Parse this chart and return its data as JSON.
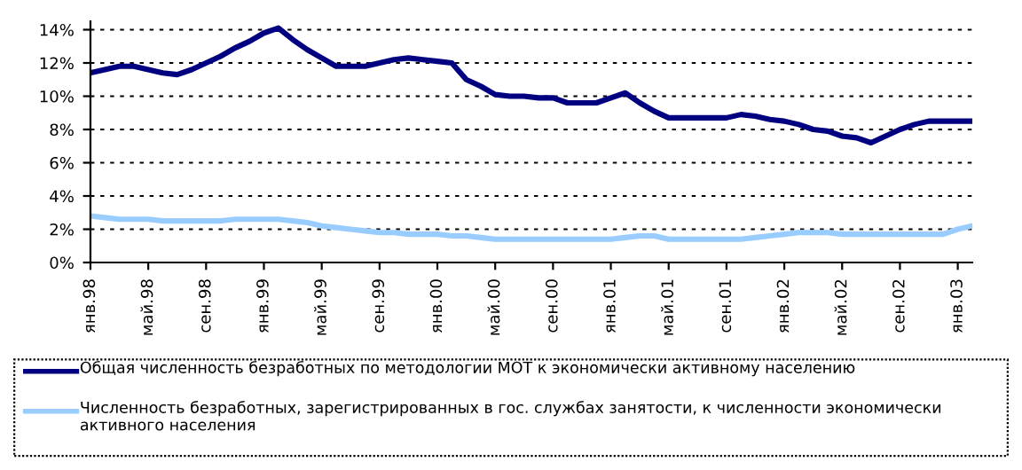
{
  "chart_data": {
    "type": "line",
    "categories": [
      "янв.98",
      null,
      null,
      null,
      "май.98",
      null,
      null,
      null,
      "сен.98",
      null,
      null,
      null,
      "янв.99",
      null,
      null,
      null,
      "май.99",
      null,
      null,
      null,
      "сен.99",
      null,
      null,
      null,
      "янв.00",
      null,
      null,
      null,
      "май.00",
      null,
      null,
      null,
      "сен.00",
      null,
      null,
      null,
      "янв.01",
      null,
      null,
      null,
      "май.01",
      null,
      null,
      null,
      "сен.01",
      null,
      null,
      null,
      "янв.02",
      null,
      null,
      null,
      "май.02",
      null,
      null,
      null,
      "сен.02",
      null,
      null,
      null,
      "янв.03",
      null
    ],
    "series": [
      {
        "name": "Общая численность безработных по методологии МОТ к экономически активному населению",
        "color": "#000080",
        "values": [
          11.4,
          11.6,
          11.8,
          11.8,
          11.6,
          11.4,
          11.3,
          11.6,
          12.0,
          12.4,
          12.9,
          13.3,
          13.8,
          14.1,
          13.4,
          12.8,
          12.3,
          11.8,
          11.8,
          11.8,
          12.0,
          12.2,
          12.3,
          12.2,
          12.1,
          12.0,
          11.0,
          10.6,
          10.1,
          10.0,
          10.0,
          9.9,
          9.9,
          9.6,
          9.6,
          9.6,
          9.9,
          10.2,
          9.6,
          9.1,
          8.7,
          8.7,
          8.7,
          8.7,
          8.7,
          8.9,
          8.8,
          8.6,
          8.5,
          8.3,
          8.0,
          7.9,
          7.6,
          7.5,
          7.2,
          7.6,
          8.0,
          8.3,
          8.5,
          8.5,
          8.5,
          8.5
        ]
      },
      {
        "name": "Численность безработных, зарегистрированных в гос. службах занятости, к численности экономически активного населения",
        "color": "#99ccff",
        "values": [
          2.8,
          2.7,
          2.6,
          2.6,
          2.6,
          2.5,
          2.5,
          2.5,
          2.5,
          2.5,
          2.6,
          2.6,
          2.6,
          2.6,
          2.5,
          2.4,
          2.2,
          2.1,
          2.0,
          1.9,
          1.8,
          1.8,
          1.7,
          1.7,
          1.7,
          1.6,
          1.6,
          1.5,
          1.4,
          1.4,
          1.4,
          1.4,
          1.4,
          1.4,
          1.4,
          1.4,
          1.4,
          1.5,
          1.6,
          1.6,
          1.4,
          1.4,
          1.4,
          1.4,
          1.4,
          1.4,
          1.5,
          1.6,
          1.7,
          1.8,
          1.8,
          1.8,
          1.7,
          1.7,
          1.7,
          1.7,
          1.7,
          1.7,
          1.7,
          1.7,
          2.0,
          2.2
        ]
      }
    ],
    "ylim": [
      0,
      14.5
    ],
    "yticks": [
      {
        "value": 0,
        "label": "0%"
      },
      {
        "value": 2,
        "label": "2%"
      },
      {
        "value": 4,
        "label": "4%"
      },
      {
        "value": 6,
        "label": "6%"
      },
      {
        "value": 8,
        "label": "8%"
      },
      {
        "value": 10,
        "label": "10%"
      },
      {
        "value": 12,
        "label": "12%"
      },
      {
        "value": 14,
        "label": "14%"
      }
    ],
    "grid": "y",
    "legend": "bottom"
  }
}
